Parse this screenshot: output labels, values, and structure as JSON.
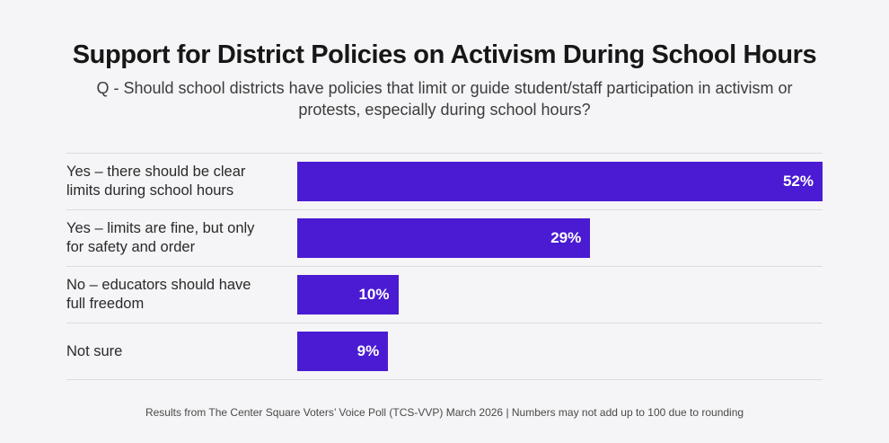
{
  "page": {
    "title": "Support for District Policies on Activism During School Hours",
    "subtitle": "Q - Should school districts have policies that limit or guide student/staff participation in activism or protests, especially during school hours?",
    "footer": "Results from The Center Square Voters’ Voice Poll (TCS-VVP) March 2026 | Numbers may not add up to 100 due to rounding"
  },
  "colors": {
    "bar": "#4a1bd2",
    "background": "#f5f4f6",
    "separator": "#dcdcdc",
    "bar_value_text": "#ffffff"
  },
  "chart_data": {
    "type": "bar",
    "orientation": "horizontal",
    "title": "Support for District Policies on Activism During School Hours",
    "subtitle": "Q - Should school districts have policies that limit or guide student/staff participation in activism or protests, especially during school hours?",
    "categories": [
      "Yes – there should be clear limits during school hours",
      "Yes – limits are fine, but only for safety and order",
      "No – educators should have full freedom",
      "Not sure"
    ],
    "values": [
      52,
      29,
      10,
      9
    ],
    "value_labels": [
      "52%",
      "29%",
      "10%",
      "9%"
    ],
    "xlabel": "",
    "ylabel": "",
    "xlim": [
      0,
      52
    ],
    "grid": false,
    "legend": false,
    "value_label_position": "inside-right",
    "source_note": "Results from The Center Square Voters’ Voice Poll (TCS-VVP) March 2026 | Numbers may not add up to 100 due to rounding"
  }
}
